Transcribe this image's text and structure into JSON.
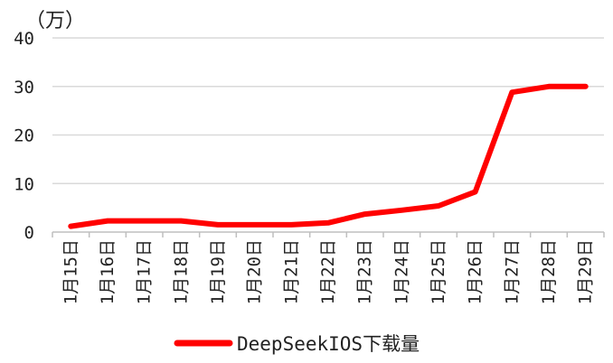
{
  "chart_data": {
    "type": "line",
    "ylabel": "（万）",
    "ylim": [
      0,
      40
    ],
    "yticks": [
      0,
      10,
      20,
      30,
      40
    ],
    "categories": [
      "1月15日",
      "1月16日",
      "1月17日",
      "1月18日",
      "1月19日",
      "1月20日",
      "1月21日",
      "1月22日",
      "1月23日",
      "1月24日",
      "1月25日",
      "1月26日",
      "1月27日",
      "1月28日",
      "1月29日"
    ],
    "series": [
      {
        "name": "DeepSeekIOS下载量",
        "color": "#ff0000",
        "values": [
          1.2,
          2.3,
          2.3,
          2.3,
          1.5,
          1.5,
          1.5,
          1.9,
          3.7,
          4.5,
          5.4,
          8.3,
          28.8,
          30.0,
          30.0
        ]
      }
    ],
    "grid": true,
    "legend": "bottom"
  }
}
